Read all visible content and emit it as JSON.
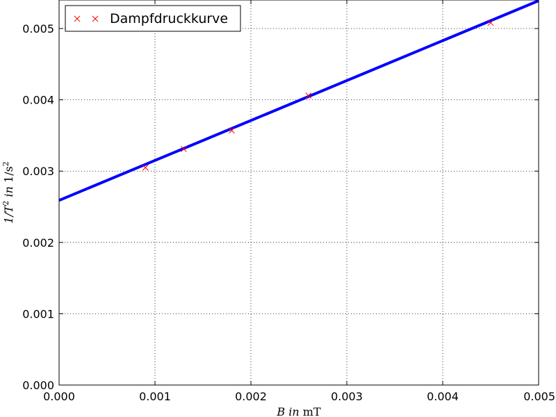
{
  "chart_data": {
    "type": "scatter",
    "xlim": [
      0,
      0.005
    ],
    "ylim": [
      0,
      0.0054
    ],
    "x_ticks": [
      "0.000",
      "0.001",
      "0.002",
      "0.003",
      "0.004",
      "0.005"
    ],
    "y_ticks": [
      "0.000",
      "0.001",
      "0.002",
      "0.003",
      "0.004",
      "0.005"
    ],
    "xlabel": {
      "var": "B",
      "word": "in",
      "unit": "mT"
    },
    "ylabel": {
      "var": "1/T",
      "exp": "2",
      "word": "in",
      "unit": "1/s",
      "unit_exp": "2"
    },
    "grid": true,
    "legend_placement": "top-left",
    "series": [
      {
        "name": "Dampfdruckkurve",
        "marker": "x",
        "color": "#ff0000",
        "x": [
          0.0009,
          0.0013,
          0.0018,
          0.0026,
          0.0045
        ],
        "y": [
          0.00305,
          0.00331,
          0.00357,
          0.00406,
          0.00508
        ]
      }
    ],
    "fit_line": {
      "color": "#0000ff",
      "x": [
        0,
        0.005
      ],
      "y": [
        0.00259,
        0.00539
      ]
    }
  }
}
